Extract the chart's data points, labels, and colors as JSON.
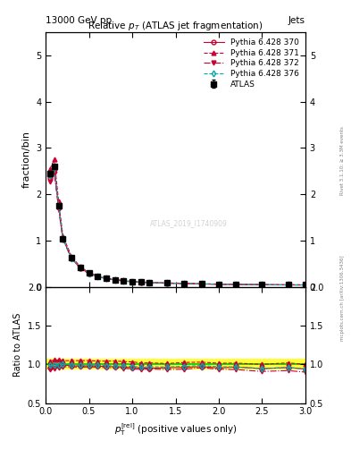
{
  "title": "Relative $p_T$ (ATLAS jet fragmentation)",
  "header_left": "13000 GeV pp",
  "header_right": "Jets",
  "ylabel_main": "fraction/bin",
  "ylabel_ratio": "Ratio to ATLAS",
  "xlabel": "$p_{\\mathrm{T}}^{\\mathrm{[rel]}}$ (positive values only)",
  "watermark": "ATLAS_2019_I1740909",
  "right_label": "mcplots.cern.ch [arXiv:1306.3436]",
  "right_label2": "Rivet 3.1.10; ≥ 3.3M events",
  "xlim": [
    0,
    3
  ],
  "ylim_main": [
    0,
    5.5
  ],
  "ylim_ratio": [
    0.5,
    2.0
  ],
  "yticks_main": [
    0,
    1,
    2,
    3,
    4,
    5
  ],
  "yticks_ratio": [
    0.5,
    1.0,
    1.5,
    2.0
  ],
  "x_data": [
    0.05,
    0.1,
    0.15,
    0.2,
    0.3,
    0.4,
    0.5,
    0.6,
    0.7,
    0.8,
    0.9,
    1.0,
    1.1,
    1.2,
    1.4,
    1.6,
    1.8,
    2.0,
    2.2,
    2.5,
    2.8,
    3.0
  ],
  "atlas_y": [
    2.45,
    2.6,
    1.75,
    1.05,
    0.63,
    0.42,
    0.3,
    0.23,
    0.19,
    0.16,
    0.14,
    0.12,
    0.11,
    0.1,
    0.09,
    0.08,
    0.07,
    0.065,
    0.06,
    0.055,
    0.05,
    0.05
  ],
  "atlas_yerr": [
    0.05,
    0.05,
    0.04,
    0.03,
    0.02,
    0.015,
    0.01,
    0.008,
    0.007,
    0.006,
    0.005,
    0.005,
    0.004,
    0.004,
    0.003,
    0.003,
    0.003,
    0.002,
    0.002,
    0.002,
    0.002,
    0.002
  ],
  "py370_y": [
    2.35,
    2.55,
    1.72,
    1.04,
    0.62,
    0.41,
    0.295,
    0.225,
    0.185,
    0.155,
    0.135,
    0.115,
    0.105,
    0.095,
    0.086,
    0.077,
    0.068,
    0.062,
    0.058,
    0.052,
    0.048,
    0.047
  ],
  "py371_y": [
    2.55,
    2.75,
    1.85,
    1.1,
    0.66,
    0.44,
    0.315,
    0.24,
    0.198,
    0.167,
    0.145,
    0.124,
    0.112,
    0.102,
    0.091,
    0.082,
    0.072,
    0.066,
    0.061,
    0.055,
    0.051,
    0.05
  ],
  "py372_y": [
    2.28,
    2.45,
    1.68,
    1.02,
    0.61,
    0.405,
    0.29,
    0.222,
    0.182,
    0.153,
    0.133,
    0.113,
    0.103,
    0.094,
    0.084,
    0.075,
    0.067,
    0.061,
    0.056,
    0.05,
    0.046,
    0.045
  ],
  "py376_y": [
    2.42,
    2.58,
    1.74,
    1.05,
    0.625,
    0.415,
    0.298,
    0.228,
    0.187,
    0.157,
    0.137,
    0.117,
    0.106,
    0.097,
    0.087,
    0.078,
    0.069,
    0.063,
    0.058,
    0.052,
    0.048,
    0.047
  ],
  "ratio_py370": [
    0.96,
    0.98,
    0.984,
    0.99,
    0.984,
    0.976,
    0.983,
    0.978,
    0.974,
    0.969,
    0.964,
    0.958,
    0.955,
    0.95,
    0.956,
    0.963,
    0.971,
    0.954,
    0.967,
    0.945,
    0.96,
    0.94
  ],
  "ratio_py371": [
    1.04,
    1.058,
    1.057,
    1.048,
    1.048,
    1.048,
    1.05,
    1.043,
    1.042,
    1.044,
    1.036,
    1.033,
    1.018,
    1.02,
    1.011,
    1.025,
    1.029,
    1.015,
    1.017,
    1.0,
    1.02,
    1.0
  ],
  "ratio_py372": [
    0.93,
    0.942,
    0.96,
    0.971,
    0.968,
    0.964,
    0.967,
    0.965,
    0.958,
    0.956,
    0.95,
    0.942,
    0.936,
    0.94,
    0.933,
    0.938,
    0.957,
    0.938,
    0.933,
    0.909,
    0.92,
    0.9
  ],
  "ratio_py376": [
    0.988,
    0.992,
    0.994,
    1.0,
    0.992,
    0.988,
    0.993,
    0.991,
    0.984,
    0.981,
    0.979,
    0.975,
    0.964,
    0.97,
    0.967,
    0.975,
    0.986,
    0.969,
    0.967,
    0.945,
    0.96,
    0.94
  ],
  "atlas_band_lo": 0.93,
  "atlas_band_hi": 1.07,
  "color_atlas": "#000000",
  "color_py370": "#cc0033",
  "color_py371": "#cc0033",
  "color_py372": "#cc0033",
  "color_py376": "#00aaaa",
  "color_band_yellow": "#ffff00",
  "color_band_green": "#00cc00"
}
